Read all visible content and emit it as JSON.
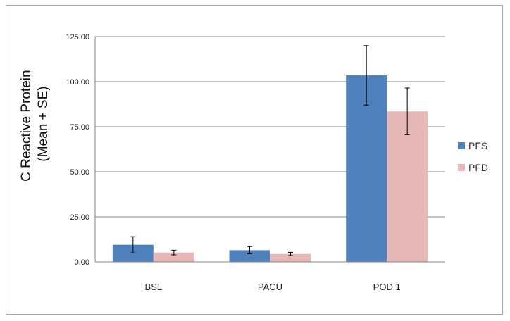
{
  "chart_data": {
    "type": "bar",
    "title": "",
    "xlabel": "",
    "ylabel_lines": [
      "C Reactive Protein",
      "(Mean + SE)"
    ],
    "categories": [
      "BSL",
      "PACU",
      "POD 1"
    ],
    "yticks": [
      "0.00",
      "25.00",
      "50.00",
      "75.00",
      "100.00",
      "125.00"
    ],
    "ylim": [
      0,
      125
    ],
    "grid": true,
    "legend_position": "right",
    "series": [
      {
        "name": "PFS",
        "color": "#4f81bd",
        "values": [
          9.5,
          6.5,
          103.5
        ],
        "errors": [
          4.5,
          2.0,
          16.5
        ]
      },
      {
        "name": "PFD",
        "color": "#e6b9b8",
        "values": [
          5.2,
          4.4,
          83.5
        ],
        "errors": [
          1.3,
          0.9,
          13.0
        ]
      }
    ]
  }
}
